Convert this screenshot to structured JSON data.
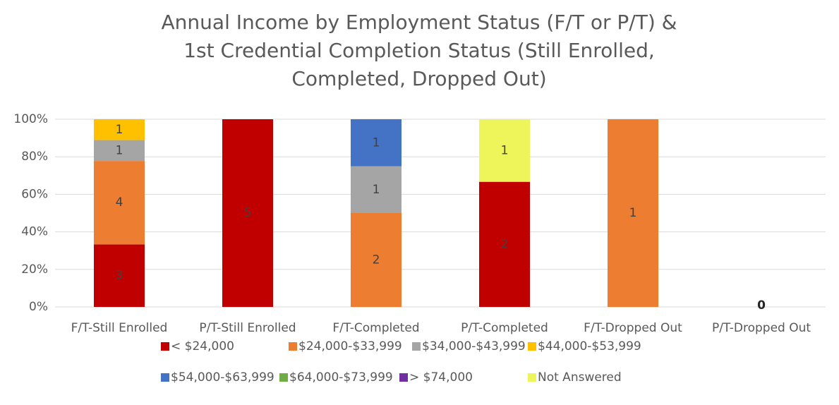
{
  "chart_data": {
    "type": "bar",
    "stacked": "percent",
    "title": "Annual Income by Employment Status (F/T or P/T) & 1st Credential Completion Status (Still Enrolled, Completed, Dropped Out)",
    "categories": [
      "F/T-Still Enrolled",
      "P/T-Still Enrolled",
      "F/T-Completed",
      "P/T-Completed",
      "F/T-Dropped Out",
      "P/T-Dropped Out"
    ],
    "series": [
      {
        "name": "< $24,000",
        "color": "#c00000",
        "values": [
          3,
          5,
          0,
          2,
          0,
          0
        ]
      },
      {
        "name": "$24,000-$33,999",
        "color": "#ed7d31",
        "values": [
          4,
          0,
          2,
          0,
          1,
          0
        ]
      },
      {
        "name": "$34,000-$43,999",
        "color": "#a5a5a5",
        "values": [
          1,
          0,
          1,
          0,
          0,
          0
        ]
      },
      {
        "name": "$44,000-$53,999",
        "color": "#ffc000",
        "values": [
          1,
          0,
          0,
          0,
          0,
          0
        ]
      },
      {
        "name": "$54,000-$63,999",
        "color": "#4472c4",
        "values": [
          0,
          0,
          1,
          0,
          0,
          0
        ]
      },
      {
        "name": "$64,000-$73,999",
        "color": "#70ad47",
        "values": [
          0,
          0,
          0,
          0,
          0,
          0
        ]
      },
      {
        "name": "> $74,000",
        "color": "#7030a0",
        "values": [
          0,
          0,
          0,
          0,
          0,
          0
        ]
      },
      {
        "name": "Not Answered",
        "color": "#eef55a",
        "values": [
          0,
          0,
          0,
          1,
          0,
          0
        ]
      }
    ],
    "ylim": [
      0,
      100
    ],
    "yticks": [
      {
        "value": 0,
        "label": "0%"
      },
      {
        "value": 20,
        "label": "20%"
      },
      {
        "value": 40,
        "label": "40%"
      },
      {
        "value": 60,
        "label": "60%"
      },
      {
        "value": 80,
        "label": "80%"
      },
      {
        "value": 100,
        "label": "100%"
      }
    ],
    "grid": true,
    "legend": "bottom"
  }
}
